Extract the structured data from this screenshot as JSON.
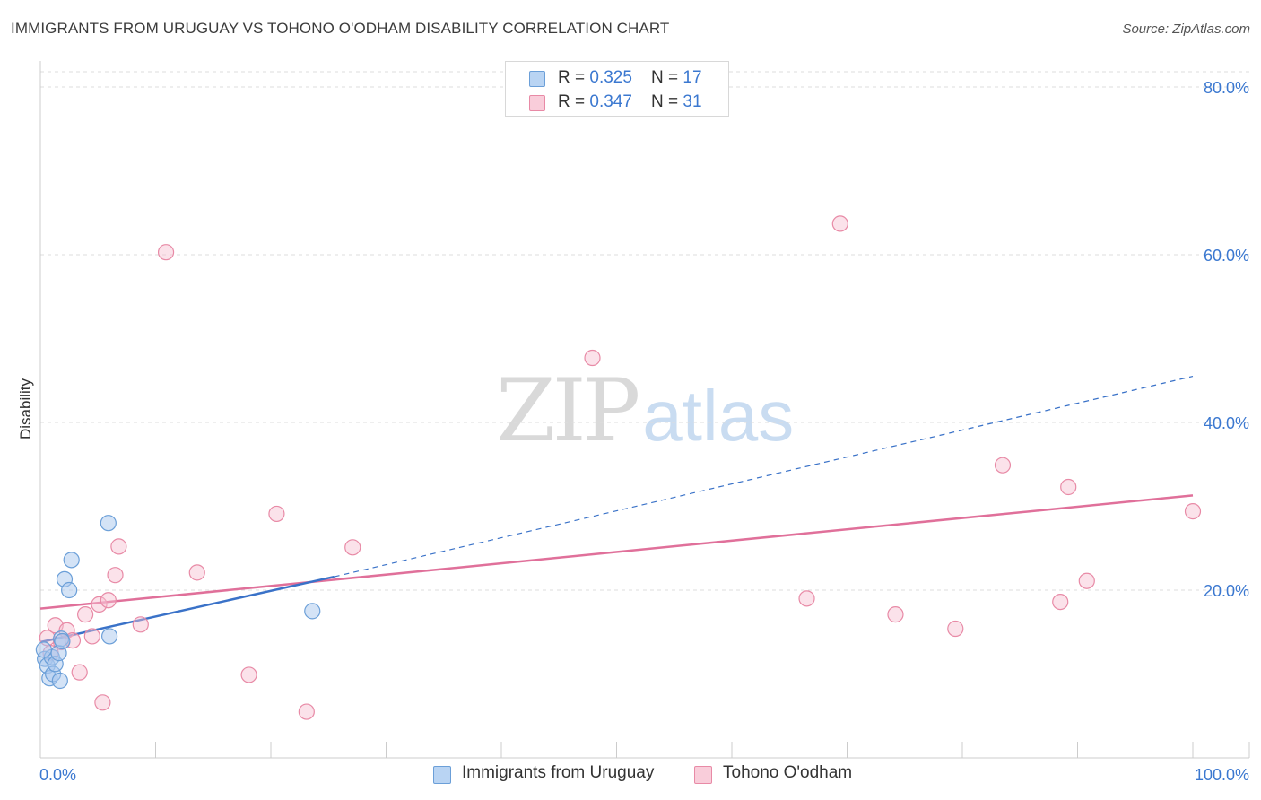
{
  "header": {
    "title": "IMMIGRANTS FROM URUGUAY VS TOHONO O'ODHAM DISABILITY CORRELATION CHART",
    "source": "Source: ZipAtlas.com"
  },
  "watermark": {
    "zip": "ZIP",
    "atlas": "atlas"
  },
  "legend": {
    "rows": [
      {
        "r_label": "R = ",
        "r_value": "0.325",
        "n_label": "N = ",
        "n_value": "17"
      },
      {
        "r_label": "R = ",
        "r_value": "0.347",
        "n_label": "N = ",
        "n_value": "31"
      }
    ]
  },
  "colors": {
    "blue_fill": "#a9c8ee",
    "blue_stroke": "#6b9fd8",
    "blue_line": "#3a72c8",
    "pink_fill": "#f6bfd0",
    "pink_stroke": "#e88aa6",
    "pink_line": "#e0709a",
    "grid": "#dddddd",
    "axis_label": "#3b78d0"
  },
  "chart_data": {
    "type": "scatter",
    "title": "IMMIGRANTS FROM URUGUAY VS TOHONO O'ODHAM DISABILITY CORRELATION CHART",
    "xlabel": "",
    "ylabel": "Disability",
    "xlim": [
      0,
      100
    ],
    "ylim": [
      0,
      80
    ],
    "x_tick_labels": [
      "0.0%",
      "100.0%"
    ],
    "y_ticks": [
      20,
      40,
      60,
      80
    ],
    "y_tick_labels": [
      "20.0%",
      "40.0%",
      "60.0%",
      "80.0%"
    ],
    "grid": true,
    "legend_position": "top-center",
    "series": [
      {
        "name": "Immigrants from Uruguay",
        "r": 0.325,
        "n": 17,
        "points": [
          [
            0.4,
            11.8
          ],
          [
            0.6,
            11.0
          ],
          [
            0.8,
            9.5
          ],
          [
            1.0,
            12.0
          ],
          [
            1.1,
            10.0
          ],
          [
            1.3,
            11.2
          ],
          [
            1.6,
            12.5
          ],
          [
            1.7,
            9.2
          ],
          [
            1.8,
            14.2
          ],
          [
            2.1,
            21.3
          ],
          [
            2.5,
            20.0
          ],
          [
            2.7,
            23.6
          ],
          [
            6.0,
            14.5
          ],
          [
            5.9,
            28.0
          ],
          [
            23.6,
            17.5
          ],
          [
            0.3,
            12.9
          ],
          [
            1.9,
            13.9
          ]
        ],
        "trend": {
          "x_start": 0,
          "y_start": 13.8,
          "x_solid_end": 25.5,
          "y_solid_end": 21.6,
          "x_end": 100,
          "y_end": 45.5
        }
      },
      {
        "name": "Tohono O'odham",
        "r": 0.347,
        "n": 31,
        "points": [
          [
            0.6,
            14.3
          ],
          [
            0.9,
            12.5
          ],
          [
            1.3,
            15.8
          ],
          [
            1.8,
            13.8
          ],
          [
            2.3,
            15.2
          ],
          [
            2.8,
            14.0
          ],
          [
            3.4,
            10.2
          ],
          [
            3.9,
            17.1
          ],
          [
            4.5,
            14.5
          ],
          [
            5.1,
            18.3
          ],
          [
            5.4,
            6.6
          ],
          [
            5.9,
            18.8
          ],
          [
            6.5,
            21.8
          ],
          [
            6.8,
            25.2
          ],
          [
            8.7,
            15.9
          ],
          [
            10.9,
            60.3
          ],
          [
            13.6,
            22.1
          ],
          [
            18.1,
            9.9
          ],
          [
            20.5,
            29.1
          ],
          [
            23.1,
            5.5
          ],
          [
            27.1,
            25.1
          ],
          [
            47.9,
            47.7
          ],
          [
            66.5,
            19.0
          ],
          [
            69.4,
            63.7
          ],
          [
            74.2,
            17.1
          ],
          [
            79.4,
            15.4
          ],
          [
            83.5,
            34.9
          ],
          [
            88.5,
            18.6
          ],
          [
            89.2,
            32.3
          ],
          [
            90.8,
            21.1
          ],
          [
            100.0,
            29.4
          ]
        ],
        "trend": {
          "x_start": 0,
          "y_start": 17.8,
          "x_end": 100,
          "y_end": 31.3
        }
      }
    ]
  },
  "bottom_legend": [
    {
      "label": "Immigrants from Uruguay"
    },
    {
      "label": "Tohono O'odham"
    }
  ]
}
